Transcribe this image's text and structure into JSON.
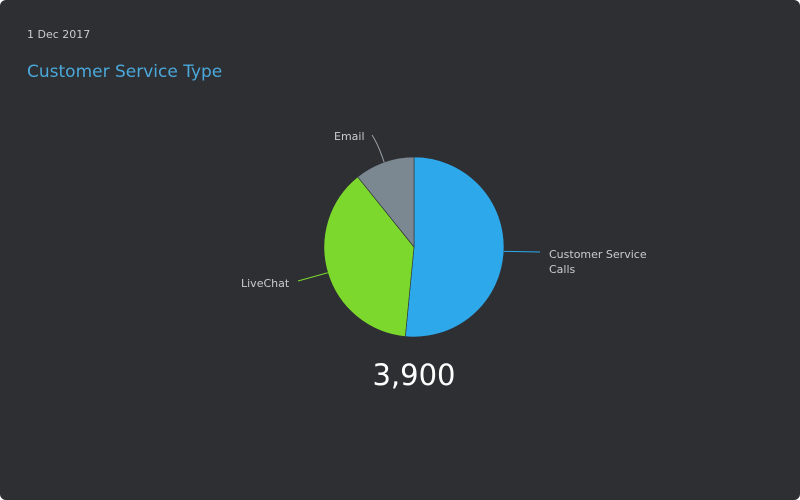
{
  "header": {
    "date": "1 Dec 2017",
    "title": "Customer Service Type"
  },
  "total": "3,900",
  "colors": {
    "background": "#2e2f33",
    "title": "#4aa8db",
    "text": "#c9cbd0"
  },
  "chart_data": {
    "type": "pie",
    "title": "Customer Service Type",
    "total": 3900,
    "series": [
      {
        "labels": [
          "Customer Service Calls",
          "LiveChat",
          "Email"
        ],
        "values": [
          2010,
          1470,
          420
        ],
        "colors": [
          "#2da8ea",
          "#7cd82c",
          "#7b8791"
        ]
      }
    ],
    "start_angle_deg": 0,
    "direction": "clockwise",
    "legend": "none"
  }
}
